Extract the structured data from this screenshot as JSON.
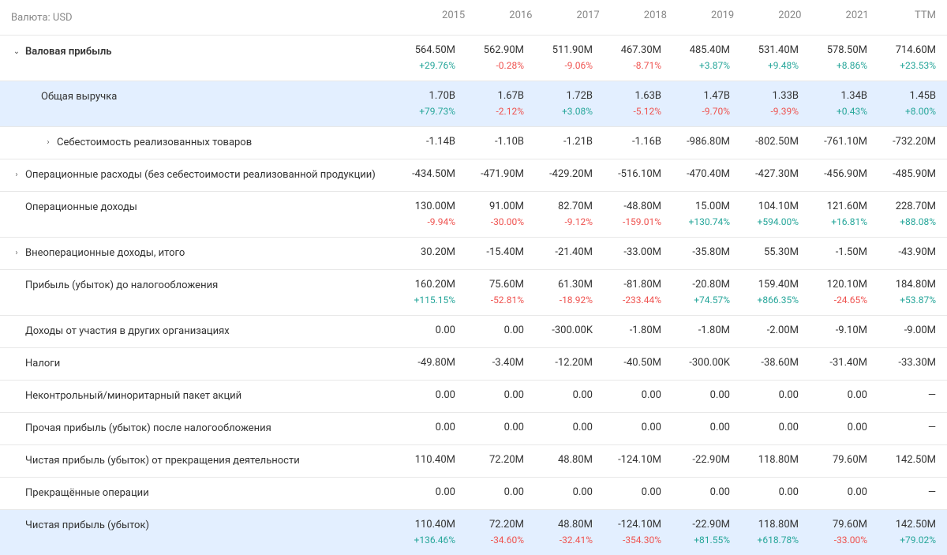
{
  "header": {
    "currency_label": "Валюта: USD",
    "columns": [
      "2015",
      "2016",
      "2017",
      "2018",
      "2019",
      "2020",
      "2021",
      "TTM"
    ]
  },
  "rows": [
    {
      "id": "gross-profit",
      "label": "Валовая прибыль",
      "bold": true,
      "expandable": true,
      "expanded": true,
      "indent": 0,
      "highlighted": false,
      "values": [
        "564.50M",
        "562.90M",
        "511.90M",
        "467.30M",
        "485.40M",
        "531.40M",
        "578.50M",
        "714.60M"
      ],
      "pct": [
        "+29.76%",
        "-0.28%",
        "-9.06%",
        "-8.71%",
        "+3.87%",
        "+9.48%",
        "+8.86%",
        "+23.53%"
      ],
      "pct_sign": [
        "pos",
        "neg",
        "neg",
        "neg",
        "pos",
        "pos",
        "pos",
        "pos"
      ]
    },
    {
      "id": "total-revenue",
      "label": "Общая выручка",
      "bold": false,
      "expandable": false,
      "expanded": false,
      "indent": 1,
      "highlighted": true,
      "values": [
        "1.70B",
        "1.67B",
        "1.72B",
        "1.63B",
        "1.47B",
        "1.33B",
        "1.34B",
        "1.45B"
      ],
      "pct": [
        "+79.73%",
        "-2.12%",
        "+3.08%",
        "-5.12%",
        "-9.70%",
        "-9.39%",
        "+0.43%",
        "+8.00%"
      ],
      "pct_sign": [
        "pos",
        "neg",
        "pos",
        "neg",
        "neg",
        "neg",
        "pos",
        "pos"
      ]
    },
    {
      "id": "cogs",
      "label": "Себестоимость реализованных товаров",
      "bold": false,
      "expandable": true,
      "expanded": false,
      "indent": 2,
      "highlighted": false,
      "values": [
        "-1.14B",
        "-1.10B",
        "-1.21B",
        "-1.16B",
        "-986.80M",
        "-802.50M",
        "-761.10M",
        "-732.20M"
      ],
      "pct": null
    },
    {
      "id": "opex",
      "label": "Операционные расходы (без себестоимости реализованной продукции)",
      "bold": false,
      "expandable": true,
      "expanded": false,
      "indent": 0,
      "highlighted": false,
      "values": [
        "-434.50M",
        "-471.90M",
        "-429.20M",
        "-516.10M",
        "-470.40M",
        "-427.30M",
        "-456.90M",
        "-485.90M"
      ],
      "pct": null
    },
    {
      "id": "op-income",
      "label": "Операционные доходы",
      "bold": false,
      "expandable": false,
      "expanded": false,
      "indent": 0,
      "highlighted": false,
      "values": [
        "130.00M",
        "91.00M",
        "82.70M",
        "-48.80M",
        "15.00M",
        "104.10M",
        "121.60M",
        "228.70M"
      ],
      "pct": [
        "-9.94%",
        "-30.00%",
        "-9.12%",
        "-159.01%",
        "+130.74%",
        "+594.00%",
        "+16.81%",
        "+88.08%"
      ],
      "pct_sign": [
        "neg",
        "neg",
        "neg",
        "neg",
        "pos",
        "pos",
        "pos",
        "pos"
      ]
    },
    {
      "id": "non-op-income",
      "label": "Внеоперационные доходы, итого",
      "bold": false,
      "expandable": true,
      "expanded": false,
      "indent": 0,
      "highlighted": false,
      "values": [
        "30.20M",
        "-15.40M",
        "-21.40M",
        "-33.00M",
        "-35.80M",
        "55.30M",
        "-1.50M",
        "-43.90M"
      ],
      "pct": null
    },
    {
      "id": "pretax",
      "label": "Прибыль (убыток) до налогообложения",
      "bold": false,
      "expandable": false,
      "expanded": false,
      "indent": 0,
      "highlighted": false,
      "values": [
        "160.20M",
        "75.60M",
        "61.30M",
        "-81.80M",
        "-20.80M",
        "159.40M",
        "120.10M",
        "184.80M"
      ],
      "pct": [
        "+115.15%",
        "-52.81%",
        "-18.92%",
        "-233.44%",
        "+74.57%",
        "+866.35%",
        "-24.65%",
        "+53.87%"
      ],
      "pct_sign": [
        "pos",
        "neg",
        "neg",
        "neg",
        "pos",
        "pos",
        "neg",
        "pos"
      ]
    },
    {
      "id": "equity-income",
      "label": "Доходы от участия в других организациях",
      "bold": false,
      "expandable": false,
      "expanded": false,
      "indent": 0,
      "highlighted": false,
      "values": [
        "0.00",
        "0.00",
        "-300.00K",
        "-1.80M",
        "-1.80M",
        "-2.00M",
        "-9.10M",
        "-9.00M"
      ],
      "pct": null
    },
    {
      "id": "taxes",
      "label": "Налоги",
      "bold": false,
      "expandable": false,
      "expanded": false,
      "indent": 0,
      "highlighted": false,
      "values": [
        "-49.80M",
        "-3.40M",
        "-12.20M",
        "-40.50M",
        "-300.00K",
        "-38.60M",
        "-31.40M",
        "-33.30M"
      ],
      "pct": null
    },
    {
      "id": "minority",
      "label": "Неконтрольный/миноритарный пакет акций",
      "bold": false,
      "expandable": false,
      "expanded": false,
      "indent": 0,
      "highlighted": false,
      "values": [
        "0.00",
        "0.00",
        "0.00",
        "0.00",
        "0.00",
        "0.00",
        "0.00",
        "—"
      ],
      "pct": null
    },
    {
      "id": "other-after-tax",
      "label": "Прочая прибыль (убыток) после налогообложения",
      "bold": false,
      "expandable": false,
      "expanded": false,
      "indent": 0,
      "highlighted": false,
      "values": [
        "0.00",
        "0.00",
        "0.00",
        "0.00",
        "0.00",
        "0.00",
        "0.00",
        "—"
      ],
      "pct": null
    },
    {
      "id": "disc-ops-income",
      "label": "Чистая прибыль (убыток) от прекращения деятельности",
      "bold": false,
      "expandable": false,
      "expanded": false,
      "indent": 0,
      "highlighted": false,
      "values": [
        "110.40M",
        "72.20M",
        "48.80M",
        "-124.10M",
        "-22.90M",
        "118.80M",
        "79.60M",
        "142.50M"
      ],
      "pct": null
    },
    {
      "id": "disc-ops",
      "label": "Прекращённые операции",
      "bold": false,
      "expandable": false,
      "expanded": false,
      "indent": 0,
      "highlighted": false,
      "values": [
        "0.00",
        "0.00",
        "0.00",
        "0.00",
        "0.00",
        "0.00",
        "0.00",
        "—"
      ],
      "pct": null
    },
    {
      "id": "net-income",
      "label": "Чистая прибыль (убыток)",
      "bold": false,
      "expandable": false,
      "expanded": false,
      "indent": 0,
      "highlighted": true,
      "values": [
        "110.40M",
        "72.20M",
        "48.80M",
        "-124.10M",
        "-22.90M",
        "118.80M",
        "79.60M",
        "142.50M"
      ],
      "pct": [
        "+136.46%",
        "-34.60%",
        "-32.41%",
        "-354.30%",
        "+81.55%",
        "+618.78%",
        "-33.00%",
        "+79.02%"
      ],
      "pct_sign": [
        "pos",
        "neg",
        "neg",
        "neg",
        "pos",
        "pos",
        "neg",
        "pos"
      ]
    }
  ]
}
